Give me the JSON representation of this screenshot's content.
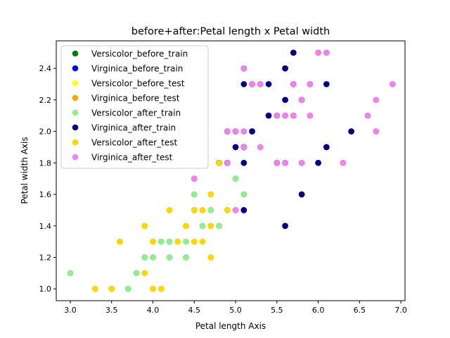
{
  "chart_data": {
    "type": "scatter",
    "title": "before+after:Petal length x Petal width",
    "xlabel": "Petal length Axis",
    "ylabel": "Petal width Axis",
    "xlim": [
      2.83,
      7.05
    ],
    "ylim": [
      0.925,
      2.575
    ],
    "x_ticks": [
      "3.0",
      "3.5",
      "4.0",
      "4.5",
      "5.0",
      "5.5",
      "6.0",
      "6.5",
      "7.0"
    ],
    "y_ticks": [
      "1.0",
      "1.2",
      "1.4",
      "1.6",
      "1.8",
      "2.0",
      "2.2",
      "2.4"
    ],
    "grid": false,
    "legend_position": "top-left",
    "series": [
      {
        "name": "Versicolor_before_train",
        "color": "#008000",
        "points": [
          [
            4.7,
            1.4
          ],
          [
            4.5,
            1.5
          ],
          [
            4.9,
            1.5
          ],
          [
            4.0,
            1.3
          ],
          [
            4.6,
            1.5
          ],
          [
            4.5,
            1.3
          ],
          [
            4.7,
            1.6
          ],
          [
            3.3,
            1.0
          ],
          [
            4.6,
            1.3
          ],
          [
            3.9,
            1.4
          ],
          [
            3.5,
            1.0
          ],
          [
            4.2,
            1.5
          ],
          [
            4.0,
            1.0
          ],
          [
            4.7,
            1.4
          ],
          [
            3.6,
            1.3
          ],
          [
            4.4,
            1.4
          ],
          [
            4.5,
            1.5
          ],
          [
            4.1,
            1.0
          ],
          [
            4.5,
            1.5
          ],
          [
            3.9,
            1.1
          ],
          [
            4.8,
            1.8
          ],
          [
            4.0,
            1.3
          ],
          [
            4.9,
            1.5
          ],
          [
            4.7,
            1.2
          ],
          [
            4.3,
            1.3
          ],
          [
            4.4,
            1.4
          ],
          [
            4.8,
            1.4
          ],
          [
            5.0,
            1.7
          ],
          [
            4.5,
            1.5
          ],
          [
            3.5,
            1.0
          ],
          [
            3.8,
            1.1
          ],
          [
            3.7,
            1.0
          ],
          [
            3.9,
            1.2
          ],
          [
            5.1,
            1.6
          ],
          [
            4.5,
            1.5
          ],
          [
            4.5,
            1.6
          ],
          [
            4.7,
            1.5
          ],
          [
            4.4,
            1.3
          ],
          [
            4.1,
            1.3
          ],
          [
            4.0,
            1.3
          ],
          [
            4.4,
            1.2
          ],
          [
            4.6,
            1.4
          ],
          [
            4.0,
            1.2
          ],
          [
            3.3,
            1.0
          ],
          [
            4.2,
            1.3
          ],
          [
            4.2,
            1.2
          ],
          [
            4.2,
            1.3
          ],
          [
            4.3,
            1.3
          ],
          [
            3.0,
            1.1
          ],
          [
            4.1,
            1.3
          ]
        ]
      },
      {
        "name": "Virginica_before_train",
        "color": "#0000ff",
        "points": [
          [
            6.0,
            2.5
          ],
          [
            5.1,
            1.9
          ],
          [
            5.9,
            2.1
          ],
          [
            5.6,
            1.8
          ],
          [
            5.8,
            2.2
          ],
          [
            6.6,
            2.1
          ],
          [
            4.5,
            1.7
          ],
          [
            6.3,
            1.8
          ],
          [
            5.8,
            1.8
          ],
          [
            6.1,
            2.5
          ],
          [
            5.1,
            2.0
          ],
          [
            5.3,
            1.9
          ],
          [
            5.5,
            2.1
          ],
          [
            5.0,
            2.0
          ],
          [
            5.1,
            2.4
          ],
          [
            5.3,
            2.3
          ],
          [
            5.5,
            1.8
          ],
          [
            6.7,
            2.2
          ],
          [
            6.9,
            2.3
          ],
          [
            5.0,
            1.5
          ],
          [
            5.7,
            2.3
          ],
          [
            4.9,
            2.0
          ],
          [
            6.7,
            2.0
          ],
          [
            4.9,
            1.8
          ],
          [
            5.7,
            2.1
          ],
          [
            6.0,
            1.8
          ],
          [
            4.8,
            1.8
          ],
          [
            4.9,
            1.8
          ],
          [
            5.6,
            2.1
          ],
          [
            5.8,
            1.6
          ],
          [
            6.1,
            1.9
          ],
          [
            6.4,
            2.0
          ],
          [
            5.6,
            2.2
          ],
          [
            5.1,
            1.5
          ],
          [
            5.6,
            1.4
          ],
          [
            6.1,
            2.3
          ],
          [
            5.6,
            2.4
          ],
          [
            5.5,
            1.8
          ],
          [
            4.8,
            1.8
          ],
          [
            5.4,
            2.1
          ],
          [
            5.6,
            2.4
          ],
          [
            5.1,
            2.3
          ],
          [
            5.1,
            1.9
          ],
          [
            5.9,
            2.3
          ],
          [
            5.7,
            2.5
          ],
          [
            5.2,
            2.3
          ],
          [
            5.0,
            1.9
          ],
          [
            5.2,
            2.0
          ],
          [
            5.4,
            2.3
          ],
          [
            5.1,
            1.8
          ]
        ]
      },
      {
        "name": "Versicolor_before_test",
        "color": "#ffff00",
        "points": [
          [
            4.7,
            1.4
          ],
          [
            4.5,
            1.5
          ],
          [
            4.9,
            1.5
          ],
          [
            4.0,
            1.3
          ],
          [
            4.6,
            1.5
          ],
          [
            4.5,
            1.3
          ],
          [
            4.7,
            1.6
          ],
          [
            3.3,
            1.0
          ],
          [
            4.6,
            1.3
          ],
          [
            3.9,
            1.4
          ],
          [
            3.5,
            1.0
          ],
          [
            4.2,
            1.5
          ],
          [
            4.0,
            1.0
          ],
          [
            3.6,
            1.3
          ],
          [
            4.4,
            1.4
          ],
          [
            4.1,
            1.0
          ],
          [
            3.9,
            1.1
          ],
          [
            4.8,
            1.8
          ],
          [
            4.0,
            1.3
          ],
          [
            4.7,
            1.2
          ],
          [
            4.3,
            1.3
          ]
        ]
      },
      {
        "name": "Virginica_before_test",
        "color": "#ffa500",
        "points": [
          [
            6.0,
            2.5
          ],
          [
            5.1,
            1.9
          ],
          [
            5.9,
            2.1
          ],
          [
            5.6,
            1.8
          ],
          [
            5.8,
            2.2
          ],
          [
            6.6,
            2.1
          ],
          [
            4.5,
            1.7
          ],
          [
            6.3,
            1.8
          ],
          [
            5.8,
            1.8
          ],
          [
            6.1,
            2.5
          ],
          [
            5.1,
            2.0
          ],
          [
            5.3,
            1.9
          ],
          [
            5.5,
            1.8
          ],
          [
            6.7,
            2.2
          ],
          [
            6.9,
            2.3
          ],
          [
            5.0,
            1.5
          ],
          [
            5.7,
            2.3
          ],
          [
            4.9,
            2.0
          ],
          [
            6.7,
            2.0
          ],
          [
            4.9,
            1.8
          ],
          [
            5.7,
            2.1
          ]
        ]
      },
      {
        "name": "Versicolor_after_train",
        "color": "#90ee90",
        "points": [
          [
            4.7,
            1.4
          ],
          [
            4.5,
            1.5
          ],
          [
            4.9,
            1.5
          ],
          [
            4.0,
            1.3
          ],
          [
            4.6,
            1.5
          ],
          [
            4.5,
            1.3
          ],
          [
            4.7,
            1.6
          ],
          [
            3.3,
            1.0
          ],
          [
            4.6,
            1.3
          ],
          [
            3.9,
            1.4
          ],
          [
            3.5,
            1.0
          ],
          [
            4.2,
            1.5
          ],
          [
            4.0,
            1.0
          ],
          [
            4.7,
            1.4
          ],
          [
            3.6,
            1.3
          ],
          [
            4.4,
            1.4
          ],
          [
            4.5,
            1.5
          ],
          [
            4.1,
            1.0
          ],
          [
            4.5,
            1.5
          ],
          [
            3.9,
            1.1
          ],
          [
            4.8,
            1.8
          ],
          [
            4.0,
            1.3
          ],
          [
            4.9,
            1.5
          ],
          [
            4.7,
            1.2
          ],
          [
            4.3,
            1.3
          ],
          [
            4.4,
            1.4
          ],
          [
            4.8,
            1.4
          ],
          [
            5.0,
            1.7
          ],
          [
            4.5,
            1.5
          ],
          [
            3.5,
            1.0
          ],
          [
            3.8,
            1.1
          ],
          [
            3.7,
            1.0
          ],
          [
            3.9,
            1.2
          ],
          [
            5.1,
            1.6
          ],
          [
            4.5,
            1.5
          ],
          [
            4.5,
            1.6
          ],
          [
            4.7,
            1.5
          ],
          [
            4.4,
            1.3
          ],
          [
            4.1,
            1.3
          ],
          [
            4.0,
            1.3
          ],
          [
            4.4,
            1.2
          ],
          [
            4.6,
            1.4
          ],
          [
            4.0,
            1.2
          ],
          [
            3.3,
            1.0
          ],
          [
            4.2,
            1.3
          ],
          [
            4.2,
            1.2
          ],
          [
            4.2,
            1.3
          ],
          [
            4.3,
            1.3
          ],
          [
            3.0,
            1.1
          ],
          [
            4.1,
            1.3
          ]
        ]
      },
      {
        "name": "Virginica_after_train",
        "color": "#000080",
        "points": [
          [
            5.1,
            1.9
          ],
          [
            5.6,
            1.8
          ],
          [
            5.8,
            2.2
          ],
          [
            5.5,
            2.1
          ],
          [
            5.0,
            2.0
          ],
          [
            5.1,
            2.4
          ],
          [
            5.3,
            2.3
          ],
          [
            5.5,
            1.8
          ],
          [
            5.7,
            2.3
          ],
          [
            4.9,
            2.0
          ],
          [
            4.9,
            1.8
          ],
          [
            5.7,
            2.1
          ],
          [
            6.0,
            1.8
          ],
          [
            4.8,
            1.8
          ],
          [
            4.9,
            1.8
          ],
          [
            5.6,
            2.1
          ],
          [
            5.8,
            1.6
          ],
          [
            6.1,
            1.9
          ],
          [
            6.4,
            2.0
          ],
          [
            5.6,
            2.2
          ],
          [
            5.1,
            1.5
          ],
          [
            5.6,
            1.4
          ],
          [
            6.1,
            2.3
          ],
          [
            5.6,
            2.4
          ],
          [
            5.5,
            1.8
          ],
          [
            4.8,
            1.8
          ],
          [
            5.4,
            2.1
          ],
          [
            5.6,
            2.4
          ],
          [
            5.1,
            2.3
          ],
          [
            5.1,
            1.9
          ],
          [
            5.9,
            2.3
          ],
          [
            5.7,
            2.5
          ],
          [
            5.2,
            2.3
          ],
          [
            5.0,
            1.9
          ],
          [
            5.2,
            2.0
          ],
          [
            5.4,
            2.3
          ],
          [
            5.1,
            1.8
          ]
        ]
      },
      {
        "name": "Versicolor_after_test",
        "color": "#ffd700",
        "points": [
          [
            4.7,
            1.4
          ],
          [
            4.5,
            1.5
          ],
          [
            4.9,
            1.5
          ],
          [
            4.0,
            1.3
          ],
          [
            4.6,
            1.5
          ],
          [
            4.5,
            1.3
          ],
          [
            4.7,
            1.6
          ],
          [
            3.3,
            1.0
          ],
          [
            4.6,
            1.3
          ],
          [
            3.9,
            1.4
          ],
          [
            3.5,
            1.0
          ],
          [
            4.2,
            1.5
          ],
          [
            4.0,
            1.0
          ],
          [
            3.6,
            1.3
          ],
          [
            4.4,
            1.4
          ],
          [
            4.1,
            1.0
          ],
          [
            3.9,
            1.1
          ],
          [
            4.8,
            1.8
          ],
          [
            4.0,
            1.3
          ],
          [
            4.7,
            1.2
          ],
          [
            4.3,
            1.3
          ]
        ]
      },
      {
        "name": "Virginica_after_test",
        "color": "#ee82ee",
        "points": [
          [
            6.0,
            2.5
          ],
          [
            5.1,
            1.9
          ],
          [
            5.9,
            2.1
          ],
          [
            5.6,
            1.8
          ],
          [
            5.8,
            2.2
          ],
          [
            6.6,
            2.1
          ],
          [
            4.5,
            1.7
          ],
          [
            6.3,
            1.8
          ],
          [
            5.8,
            1.8
          ],
          [
            6.1,
            2.5
          ],
          [
            5.1,
            2.0
          ],
          [
            5.3,
            1.9
          ],
          [
            5.5,
            1.8
          ],
          [
            6.7,
            2.2
          ],
          [
            6.9,
            2.3
          ],
          [
            5.0,
            1.5
          ],
          [
            5.7,
            2.3
          ],
          [
            4.9,
            2.0
          ],
          [
            6.7,
            2.0
          ],
          [
            4.9,
            1.8
          ],
          [
            5.7,
            2.1
          ],
          [
            5.3,
            2.3
          ],
          [
            5.1,
            2.4
          ],
          [
            5.0,
            2.0
          ],
          [
            5.5,
            2.1
          ],
          [
            5.9,
            2.3
          ],
          [
            5.2,
            2.3
          ],
          [
            5.8,
            1.8
          ],
          [
            5.6,
            2.1
          ]
        ]
      }
    ]
  }
}
